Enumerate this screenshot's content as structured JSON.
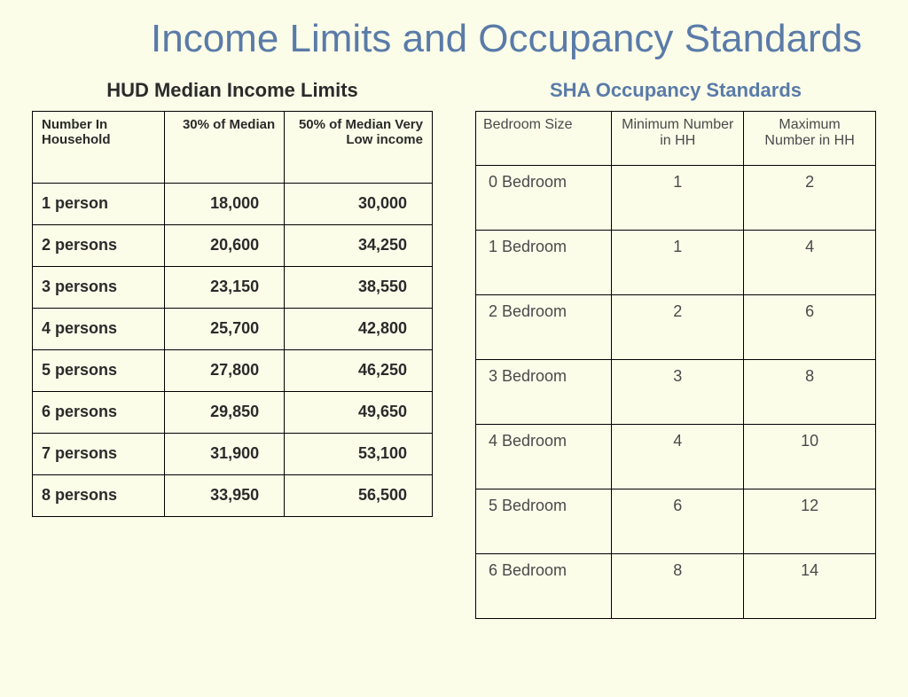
{
  "title": "Income Limits and Occupancy Standards",
  "background_color": "#fbfde9",
  "title_color": "#5a7ba8",
  "title_fontsize": 44,
  "left_table": {
    "title": "HUD Median Income Limits",
    "title_color": "#2b2b2b",
    "title_fontsize": 22,
    "columns": [
      "Number In Household",
      "30% of Median",
      "50% of Median Very Low income"
    ],
    "column_align": [
      "left",
      "right",
      "right"
    ],
    "header_fontsize": 15,
    "cell_fontsize": 18,
    "cell_fontweight": "bold",
    "border_color": "#000000",
    "rows": [
      [
        "1 person",
        "18,000",
        "30,000"
      ],
      [
        "2 persons",
        "20,600",
        "34,250"
      ],
      [
        "3 persons",
        "23,150",
        "38,550"
      ],
      [
        "4 persons",
        "25,700",
        "42,800"
      ],
      [
        "5 persons",
        "27,800",
        "46,250"
      ],
      [
        "6 persons",
        "29,850",
        "49,650"
      ],
      [
        "7 persons",
        "31,900",
        "53,100"
      ],
      [
        "8 persons",
        "33,950",
        "56,500"
      ]
    ]
  },
  "right_table": {
    "title": "SHA Occupancy Standards",
    "title_color": "#5a7ba8",
    "title_fontsize": 22,
    "columns": [
      "Bedroom Size",
      "Minimum Number in HH",
      "Maximum Number in HH"
    ],
    "column_align": [
      "left",
      "center",
      "center"
    ],
    "header_fontsize": 16,
    "cell_fontsize": 18,
    "cell_fontweight": "normal",
    "text_color": "#4a4a4a",
    "border_color": "#000000",
    "rows": [
      [
        "0 Bedroom",
        "1",
        "2"
      ],
      [
        "1 Bedroom",
        "1",
        "4"
      ],
      [
        "2 Bedroom",
        "2",
        "6"
      ],
      [
        "3 Bedroom",
        "3",
        "8"
      ],
      [
        "4 Bedroom",
        "4",
        "10"
      ],
      [
        "5 Bedroom",
        "6",
        "12"
      ],
      [
        "6 Bedroom",
        "8",
        "14"
      ]
    ]
  }
}
